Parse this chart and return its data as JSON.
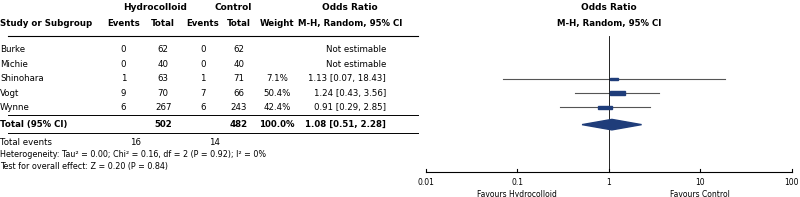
{
  "col_header_hydrocolloid": "Hydrocolloid",
  "col_header_control": "Control",
  "col_header_or": "Odds Ratio",
  "col_header_or2": "Odds Ratio",
  "col_subheader_or": "M-H, Random, 95% CI",
  "col_subheader_or2": "M-H, Random, 95% CI",
  "studies": [
    {
      "name": "Burke",
      "hc_events": 0,
      "hc_total": 62,
      "c_events": 0,
      "c_total": 62,
      "weight": "",
      "or_text": "Not estimable",
      "or": null,
      "ci_lo": null,
      "ci_hi": null
    },
    {
      "name": "Michie",
      "hc_events": 0,
      "hc_total": 40,
      "c_events": 0,
      "c_total": 40,
      "weight": "",
      "or_text": "Not estimable",
      "or": null,
      "ci_lo": null,
      "ci_hi": null
    },
    {
      "name": "Shinohara",
      "hc_events": 1,
      "hc_total": 63,
      "c_events": 1,
      "c_total": 71,
      "weight": "7.1%",
      "or_text": "1.13 [0.07, 18.43]",
      "or": 1.13,
      "ci_lo": 0.07,
      "ci_hi": 18.43
    },
    {
      "name": "Vogt",
      "hc_events": 9,
      "hc_total": 70,
      "c_events": 7,
      "c_total": 66,
      "weight": "50.4%",
      "or_text": "1.24 [0.43, 3.56]",
      "or": 1.24,
      "ci_lo": 0.43,
      "ci_hi": 3.56
    },
    {
      "name": "Wynne",
      "hc_events": 6,
      "hc_total": 267,
      "c_events": 6,
      "c_total": 243,
      "weight": "42.4%",
      "or_text": "0.91 [0.29, 2.85]",
      "or": 0.91,
      "ci_lo": 0.29,
      "ci_hi": 2.85
    }
  ],
  "total": {
    "hc_total": 502,
    "c_total": 482,
    "weight": "100.0%",
    "or_text": "1.08 [0.51, 2.28]",
    "or": 1.08,
    "ci_lo": 0.51,
    "ci_hi": 2.28,
    "hc_events": 16,
    "c_events": 14
  },
  "heterogeneity": "Heterogeneity: Tau² = 0.00; Chi² = 0.16, df = 2 (P = 0.92); I² = 0%",
  "test_overall": "Test for overall effect: Z = 0.20 (P = 0.84)",
  "axis_ticks": [
    0.01,
    0.1,
    1,
    10,
    100
  ],
  "axis_labels": [
    "0.01",
    "0.1",
    "1",
    "10",
    "100"
  ],
  "favours_left": "Favours Hydrocolloid",
  "favours_right": "Favours Control",
  "square_color": "#1f3d7a",
  "diamond_color": "#1f3d7a",
  "line_color": "#555555",
  "text_color": "#000000",
  "bg_color": "#ffffff"
}
